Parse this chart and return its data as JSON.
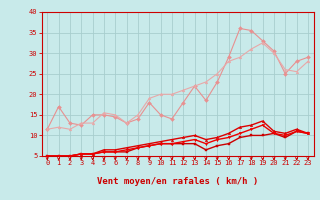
{
  "background_color": "#c8eaea",
  "grid_color": "#a8cece",
  "xlabel": "Vent moyen/en rafales ( km/h )",
  "xlim": [
    -0.5,
    23.5
  ],
  "ylim": [
    5,
    40
  ],
  "yticks": [
    5,
    10,
    15,
    20,
    25,
    30,
    35,
    40
  ],
  "xticks": [
    0,
    1,
    2,
    3,
    4,
    5,
    6,
    7,
    8,
    9,
    10,
    11,
    12,
    13,
    14,
    15,
    16,
    17,
    18,
    19,
    20,
    21,
    22,
    23
  ],
  "series_light": [
    {
      "x": [
        0,
        1,
        2,
        3,
        4,
        5,
        6,
        7,
        8,
        9,
        10,
        11,
        12,
        13,
        14,
        15,
        16,
        17,
        18,
        19,
        20,
        21,
        22,
        23
      ],
      "y": [
        11.5,
        17,
        13,
        12.5,
        15,
        15,
        14.5,
        13,
        14,
        18,
        15,
        14,
        18,
        22,
        18.5,
        23,
        29,
        36,
        35.5,
        33,
        30.5,
        25,
        28,
        29
      ],
      "color": "#e89090",
      "marker": "D",
      "markersize": 2.0,
      "linewidth": 0.8
    },
    {
      "x": [
        0,
        1,
        2,
        3,
        4,
        5,
        6,
        7,
        8,
        9,
        10,
        11,
        12,
        13,
        14,
        15,
        16,
        17,
        18,
        19,
        20,
        21,
        22,
        23
      ],
      "y": [
        11.5,
        12,
        11.5,
        13,
        13,
        15.5,
        15,
        13,
        15,
        19,
        20,
        20,
        21,
        22,
        23,
        25,
        28,
        29,
        31,
        32.5,
        30,
        26,
        25.5,
        28
      ],
      "color": "#e8a8a8",
      "marker": "^",
      "markersize": 2.0,
      "linewidth": 0.8
    }
  ],
  "series_dark": [
    {
      "x": [
        0,
        1,
        2,
        3,
        4,
        5,
        6,
        7,
        8,
        9,
        10,
        11,
        12,
        13,
        14,
        15,
        16,
        17,
        18,
        19,
        20,
        21,
        22,
        23
      ],
      "y": [
        5,
        5,
        5,
        5.5,
        5.5,
        6,
        6,
        6,
        7,
        7.5,
        8,
        8,
        8,
        8,
        6.5,
        7.5,
        8,
        9.5,
        10,
        10,
        10.5,
        9.5,
        11,
        10.5
      ],
      "color": "#cc0000",
      "marker": "s",
      "markersize": 1.8,
      "linewidth": 1.0
    },
    {
      "x": [
        0,
        1,
        2,
        3,
        4,
        5,
        6,
        7,
        8,
        9,
        10,
        11,
        12,
        13,
        14,
        15,
        16,
        17,
        18,
        19,
        20,
        21,
        22,
        23
      ],
      "y": [
        5,
        5,
        5,
        5.5,
        5.5,
        6.5,
        6.5,
        7,
        7.5,
        8,
        8.5,
        9,
        9.5,
        10,
        9,
        9.5,
        10.5,
        12,
        12.5,
        13.5,
        11,
        10.5,
        11.5,
        10.5
      ],
      "color": "#dd0000",
      "marker": "^",
      "markersize": 1.8,
      "linewidth": 1.0
    },
    {
      "x": [
        0,
        1,
        2,
        3,
        4,
        5,
        6,
        7,
        8,
        9,
        10,
        11,
        12,
        13,
        14,
        15,
        16,
        17,
        18,
        19,
        20,
        21,
        22,
        23
      ],
      "y": [
        5,
        5,
        5,
        5.5,
        5.5,
        6,
        6,
        6.5,
        7,
        7.5,
        8,
        8,
        8.5,
        9,
        8,
        9,
        9.5,
        10.5,
        11.5,
        12.5,
        10.5,
        10,
        11,
        10.5
      ],
      "color": "#ee0000",
      "marker": "v",
      "markersize": 1.8,
      "linewidth": 1.0
    }
  ],
  "tick_arrow_color": "#cc0000",
  "axis_color": "#cc0000",
  "tick_label_color": "#cc0000",
  "xlabel_color": "#cc0000",
  "xlabel_fontsize": 6.5,
  "tick_fontsize": 5.0
}
